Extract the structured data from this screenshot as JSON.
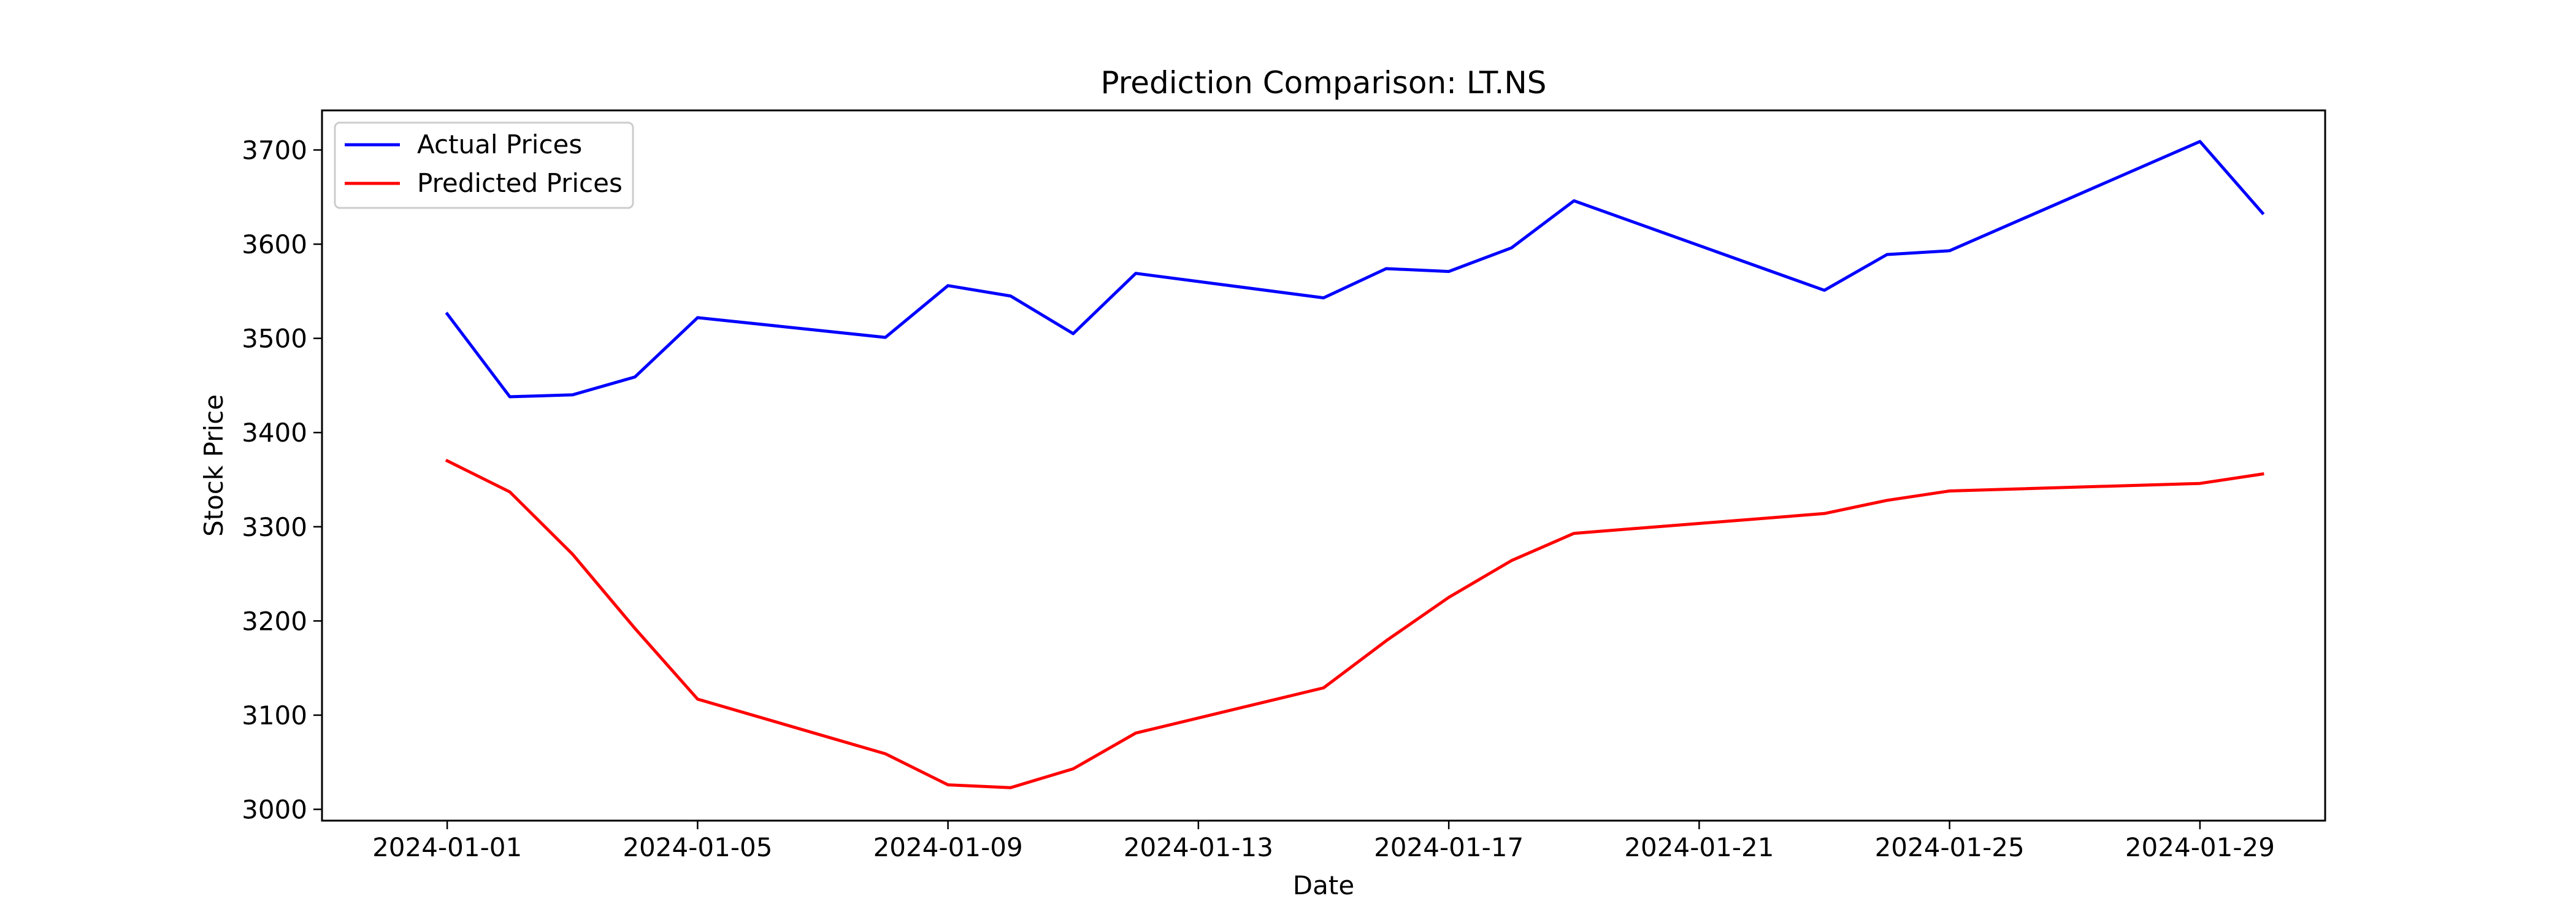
{
  "chart_data": {
    "type": "line",
    "title": "Prediction Comparison: LT.NS",
    "xlabel": "Date",
    "ylabel": "Stock Price",
    "x_tick_labels": [
      "2024-01-01",
      "2024-01-05",
      "2024-01-09",
      "2024-01-13",
      "2024-01-17",
      "2024-01-21",
      "2024-01-25",
      "2024-01-29"
    ],
    "y_ticks": [
      3000,
      3100,
      3200,
      3300,
      3400,
      3500,
      3600,
      3700
    ],
    "xlim": [
      "2023-12-30",
      "2024-01-31"
    ],
    "ylim": [
      2988,
      3742
    ],
    "grid": false,
    "legend_position": "top-left",
    "x": [
      "2024-01-01",
      "2024-01-02",
      "2024-01-03",
      "2024-01-04",
      "2024-01-05",
      "2024-01-08",
      "2024-01-09",
      "2024-01-10",
      "2024-01-11",
      "2024-01-12",
      "2024-01-15",
      "2024-01-16",
      "2024-01-17",
      "2024-01-18",
      "2024-01-19",
      "2024-01-23",
      "2024-01-24",
      "2024-01-25",
      "2024-01-29",
      "2024-01-30"
    ],
    "series": [
      {
        "name": "Actual Prices",
        "color": "#0000ff",
        "values": [
          3526,
          3438,
          3440,
          3459,
          3522,
          3501,
          3556,
          3545,
          3505,
          3569,
          3543,
          3574,
          3571,
          3596,
          3646,
          3551,
          3589,
          3593,
          3709,
          3633
        ]
      },
      {
        "name": "Predicted Prices",
        "color": "#ff0000",
        "values": [
          3370,
          3337,
          3271,
          3192,
          3117,
          3059,
          3026,
          3023,
          3043,
          3081,
          3129,
          3179,
          3225,
          3264,
          3293,
          3314,
          3328,
          3338,
          3346,
          3356
        ]
      }
    ]
  }
}
